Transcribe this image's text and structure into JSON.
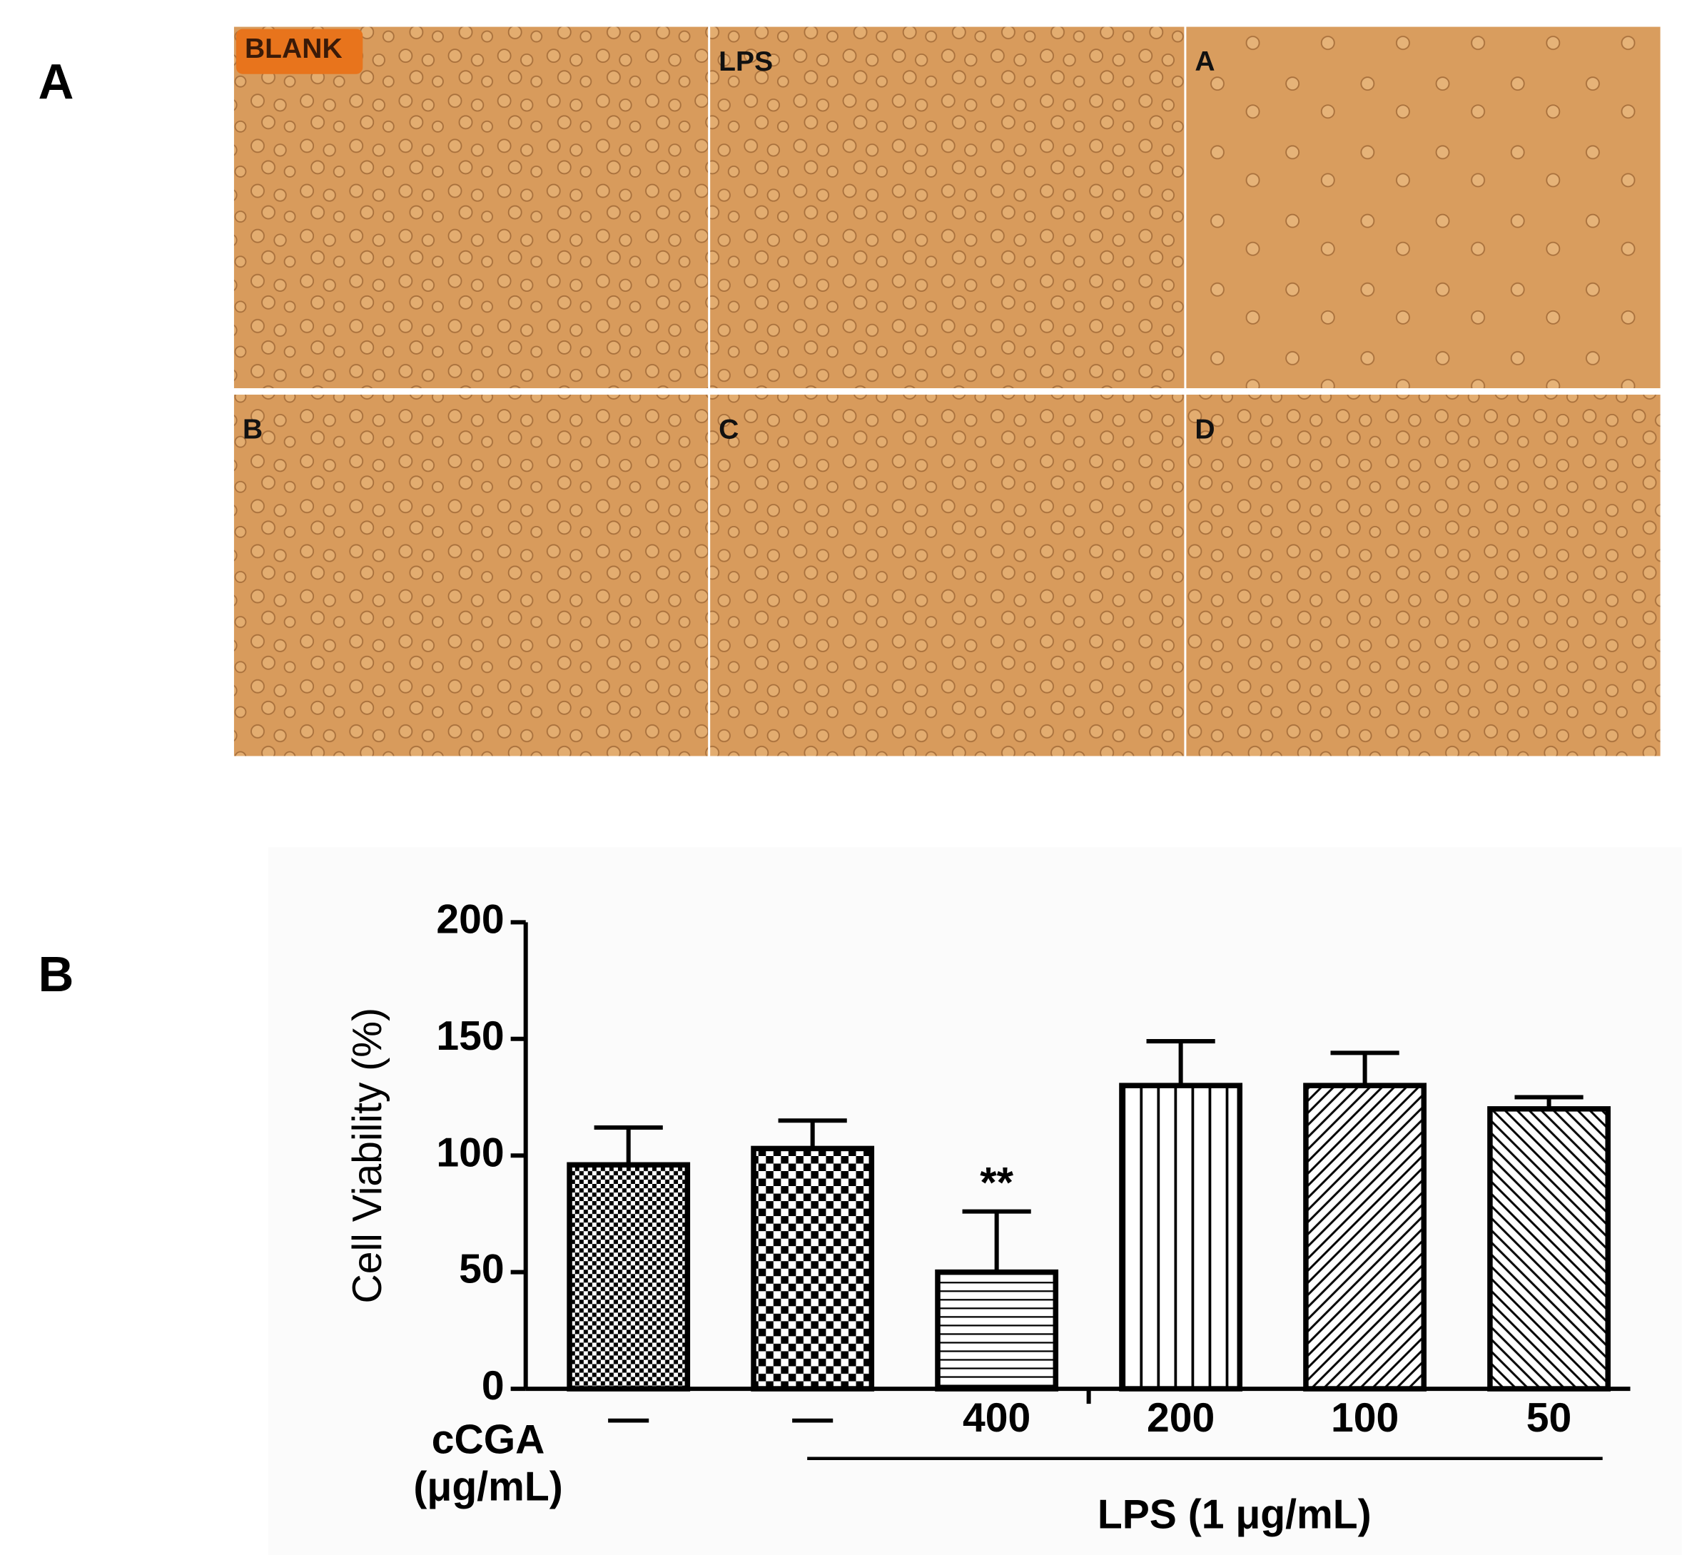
{
  "panel_labels": [
    "A",
    "B"
  ],
  "micrograph_labels": [
    "BLANK",
    "LPS",
    "A",
    "B",
    "C",
    "D"
  ],
  "chart_data": {
    "type": "bar",
    "ylabel": "Cell Viability (%)",
    "xlabel_lines": [
      "cCGA",
      "(μg/mL)"
    ],
    "group_label": "LPS (1 μg/mL)",
    "categories": [
      "—",
      "—",
      "400",
      "200",
      "100",
      "50"
    ],
    "values": [
      96,
      103,
      50,
      130,
      130,
      120
    ],
    "errors": [
      16,
      12,
      26,
      19,
      14,
      5
    ],
    "patterns": [
      "checker-fine",
      "checker",
      "horizontal",
      "vertical",
      "diagonal-up",
      "diagonal-down"
    ],
    "color": "#000000",
    "annotations": [
      {
        "text": "**",
        "category": "400"
      }
    ],
    "ylim": [
      0,
      200
    ],
    "yticks": [
      0,
      50,
      100,
      150,
      200
    ]
  }
}
